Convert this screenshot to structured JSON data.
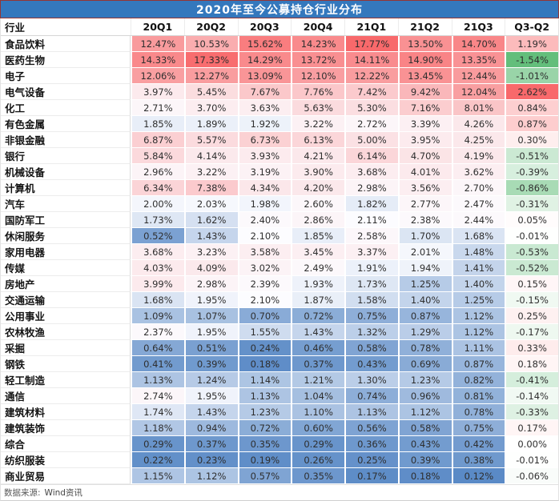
{
  "title": "2020年至今公募持仓行业分布",
  "footer": {
    "source_label": "数据来源:",
    "source_value": "Wind资讯"
  },
  "theme": {
    "title_bg": "#3478bd",
    "title_border": "#943634",
    "title_text": "#ffffff"
  },
  "chart_data": {
    "type": "heatmap",
    "title": "2020年至今公募持仓行业分布",
    "columns": [
      "行业",
      "20Q1",
      "20Q2",
      "20Q3",
      "20Q4",
      "21Q1",
      "21Q2",
      "21Q3",
      "Q3-Q2"
    ],
    "value_suffix": "%",
    "color_scales": {
      "main": {
        "min": 0.12,
        "mid": 2.1,
        "max": 17.77,
        "low": "#5a8ac6",
        "mid_color": "#fcfcff",
        "high": "#f8696b"
      },
      "delta": {
        "min": -1.54,
        "mid": 0,
        "max": 2.62,
        "low": "#63be7b",
        "mid_color": "#ffffff",
        "high": "#f8696b"
      }
    },
    "rows": [
      {
        "industry": "食品饮料",
        "values": [
          12.47,
          10.53,
          15.62,
          14.23,
          17.77,
          13.5,
          14.7
        ],
        "delta": 1.19
      },
      {
        "industry": "医药生物",
        "values": [
          14.33,
          17.33,
          14.29,
          13.72,
          14.11,
          14.9,
          13.35
        ],
        "delta": -1.54
      },
      {
        "industry": "电子",
        "values": [
          12.06,
          12.27,
          13.09,
          12.1,
          12.22,
          13.45,
          12.44
        ],
        "delta": -1.01
      },
      {
        "industry": "电气设备",
        "values": [
          3.97,
          5.45,
          7.67,
          7.76,
          7.42,
          9.42,
          12.04
        ],
        "delta": 2.62
      },
      {
        "industry": "化工",
        "values": [
          2.71,
          3.7,
          3.63,
          5.63,
          5.3,
          7.16,
          8.01
        ],
        "delta": 0.84
      },
      {
        "industry": "有色金属",
        "values": [
          1.85,
          1.89,
          1.92,
          3.22,
          2.72,
          3.39,
          4.26
        ],
        "delta": 0.87
      },
      {
        "industry": "非银金融",
        "values": [
          6.87,
          5.57,
          6.73,
          6.13,
          5.0,
          3.95,
          4.25
        ],
        "delta": 0.3
      },
      {
        "industry": "银行",
        "values": [
          5.84,
          4.14,
          3.93,
          4.21,
          6.14,
          4.7,
          4.19
        ],
        "delta": -0.51
      },
      {
        "industry": "机械设备",
        "values": [
          2.96,
          3.22,
          3.19,
          3.9,
          3.68,
          4.01,
          3.62
        ],
        "delta": -0.39
      },
      {
        "industry": "计算机",
        "values": [
          6.34,
          7.38,
          4.34,
          4.2,
          2.98,
          3.56,
          2.7
        ],
        "delta": -0.86
      },
      {
        "industry": "汽车",
        "values": [
          2.0,
          2.03,
          1.98,
          2.6,
          1.82,
          2.77,
          2.47
        ],
        "delta": -0.31
      },
      {
        "industry": "国防军工",
        "values": [
          1.73,
          1.62,
          2.4,
          2.86,
          2.11,
          2.38,
          2.44
        ],
        "delta": 0.05
      },
      {
        "industry": "休闲服务",
        "values": [
          0.52,
          1.43,
          2.1,
          1.85,
          2.58,
          1.7,
          1.68
        ],
        "delta": -0.01
      },
      {
        "industry": "家用电器",
        "values": [
          3.68,
          3.23,
          3.58,
          3.45,
          3.37,
          2.01,
          1.48
        ],
        "delta": -0.53
      },
      {
        "industry": "传媒",
        "values": [
          4.03,
          4.09,
          3.02,
          2.49,
          1.91,
          1.94,
          1.41
        ],
        "delta": -0.52
      },
      {
        "industry": "房地产",
        "values": [
          3.99,
          2.98,
          2.39,
          1.93,
          1.73,
          1.25,
          1.4
        ],
        "delta": 0.15
      },
      {
        "industry": "交通运输",
        "values": [
          1.68,
          1.95,
          2.1,
          1.87,
          1.58,
          1.4,
          1.25
        ],
        "delta": -0.15
      },
      {
        "industry": "公用事业",
        "values": [
          1.09,
          1.07,
          0.7,
          0.72,
          0.75,
          0.87,
          1.12
        ],
        "delta": 0.25
      },
      {
        "industry": "农林牧渔",
        "values": [
          2.37,
          1.95,
          1.55,
          1.43,
          1.32,
          1.29,
          1.12
        ],
        "delta": -0.17
      },
      {
        "industry": "采掘",
        "values": [
          0.64,
          0.51,
          0.24,
          0.46,
          0.58,
          0.78,
          1.11
        ],
        "delta": 0.33
      },
      {
        "industry": "钢铁",
        "values": [
          0.41,
          0.39,
          0.18,
          0.37,
          0.43,
          0.69,
          0.87
        ],
        "delta": 0.18
      },
      {
        "industry": "轻工制造",
        "values": [
          1.13,
          1.24,
          1.14,
          1.21,
          1.3,
          1.23,
          0.82
        ],
        "delta": -0.41
      },
      {
        "industry": "通信",
        "values": [
          2.74,
          1.95,
          1.13,
          1.04,
          0.74,
          0.96,
          0.81
        ],
        "delta": -0.14
      },
      {
        "industry": "建筑材料",
        "values": [
          1.74,
          1.43,
          1.23,
          1.1,
          1.13,
          1.12,
          0.78
        ],
        "delta": -0.33
      },
      {
        "industry": "建筑装饰",
        "values": [
          1.18,
          0.94,
          0.72,
          0.6,
          0.56,
          0.58,
          0.75
        ],
        "delta": 0.17
      },
      {
        "industry": "综合",
        "values": [
          0.29,
          0.37,
          0.35,
          0.29,
          0.36,
          0.43,
          0.42
        ],
        "delta": 0.0
      },
      {
        "industry": "纺织服装",
        "values": [
          0.22,
          0.23,
          0.19,
          0.26,
          0.25,
          0.39,
          0.38
        ],
        "delta": -0.01
      },
      {
        "industry": "商业贸易",
        "values": [
          1.15,
          1.12,
          0.57,
          0.35,
          0.17,
          0.18,
          0.12
        ],
        "delta": -0.06
      }
    ]
  }
}
